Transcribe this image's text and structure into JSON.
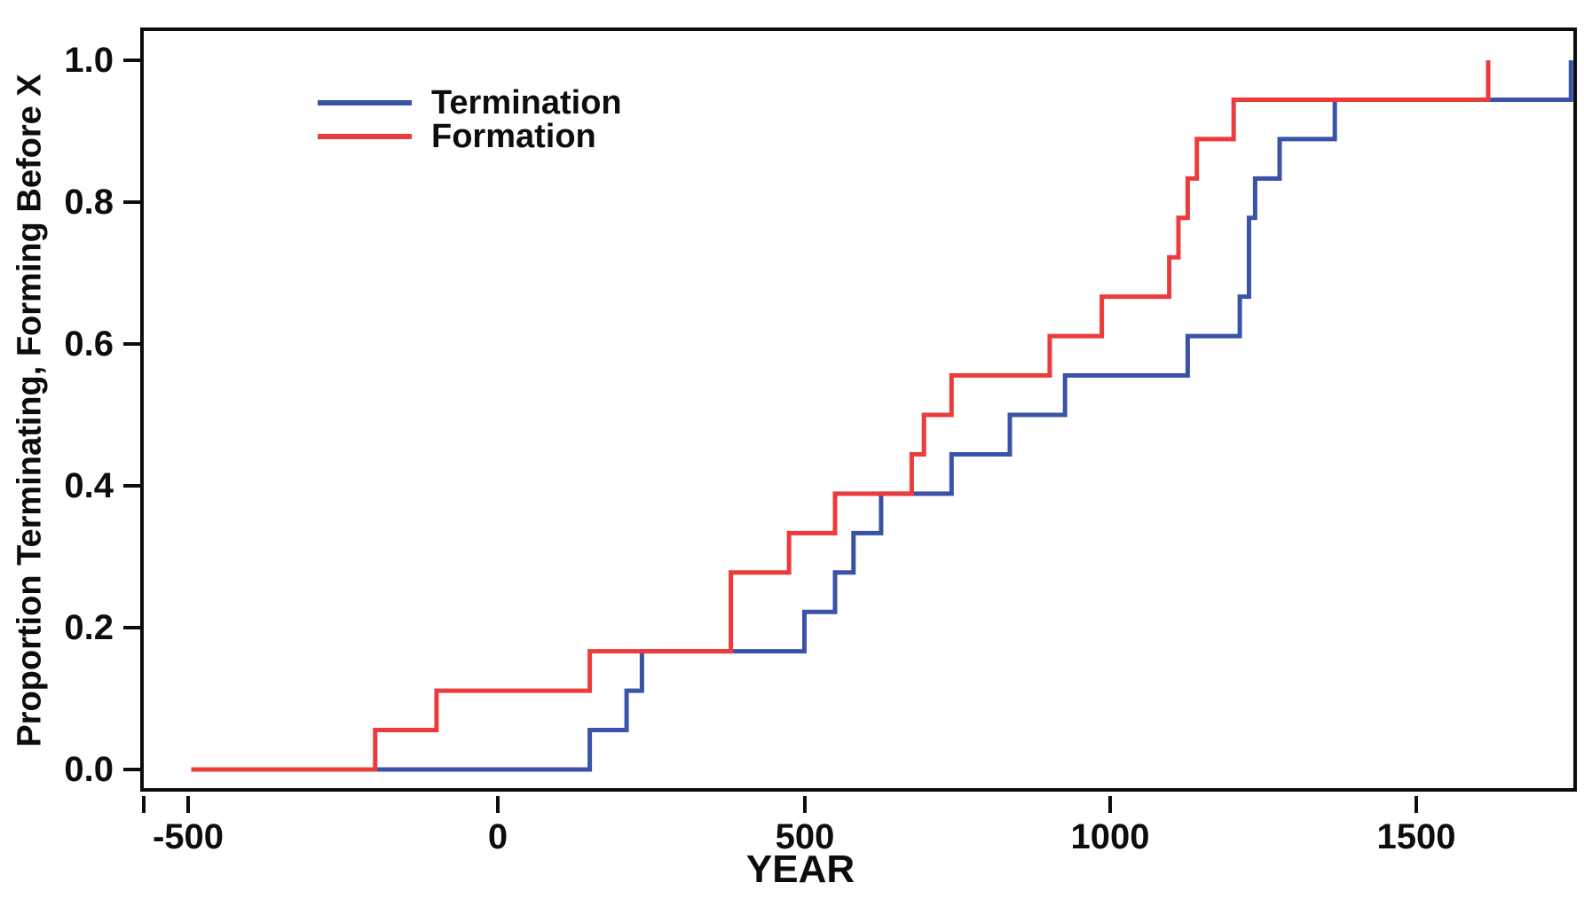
{
  "figure": {
    "x_axis_title": "YEAR",
    "y_axis_title": "Proportion Terminating, Forming Before X",
    "x_tick_labels": [
      "-500",
      "0",
      "500",
      "1000",
      "1500"
    ],
    "y_tick_labels": [
      "0.0",
      "0.2",
      "0.4",
      "0.6",
      "0.8",
      "1.0"
    ],
    "legend": {
      "items": [
        {
          "label": "Termination",
          "color": "#3A53A8"
        },
        {
          "label": "Formation",
          "color": "#EC3B3D"
        }
      ]
    }
  },
  "chart_data": {
    "type": "line",
    "subtype": "step-ecdf",
    "title": "",
    "xlabel": "YEAR",
    "ylabel": "Proportion Terminating, Forming Before X",
    "xlim": [
      -575,
      1765
    ],
    "ylim": [
      -0.035,
      1.045
    ],
    "x_ticks": [
      -500,
      0,
      500,
      1000,
      1500
    ],
    "y_ticks": [
      0.0,
      0.2,
      0.4,
      0.6,
      0.8,
      1.0
    ],
    "grid": false,
    "legend_position": "upper-left-inside",
    "series": [
      {
        "name": "Termination",
        "color": "#3A53A8",
        "start": [
          -500,
          0
        ],
        "steps": [
          [
            150,
            0.0556
          ],
          [
            210,
            0.1111
          ],
          [
            235,
            0.1667
          ],
          [
            500,
            0.2222
          ],
          [
            550,
            0.2778
          ],
          [
            580,
            0.3333
          ],
          [
            625,
            0.3889
          ],
          [
            740,
            0.4444
          ],
          [
            835,
            0.5
          ],
          [
            925,
            0.5556
          ],
          [
            1125,
            0.6111
          ],
          [
            1210,
            0.6667
          ],
          [
            1225,
            0.7778
          ],
          [
            1235,
            0.8333
          ],
          [
            1275,
            0.8889
          ],
          [
            1365,
            0.9444
          ],
          [
            1750,
            1.0
          ]
        ]
      },
      {
        "name": "Formation",
        "color": "#EC3B3D",
        "start": [
          -500,
          0
        ],
        "steps": [
          [
            -200,
            0.0556
          ],
          [
            -100,
            0.1111
          ],
          [
            150,
            0.1667
          ],
          [
            380,
            0.2778
          ],
          [
            475,
            0.3333
          ],
          [
            550,
            0.3889
          ],
          [
            675,
            0.4444
          ],
          [
            695,
            0.5
          ],
          [
            740,
            0.5556
          ],
          [
            900,
            0.6111
          ],
          [
            985,
            0.6667
          ],
          [
            1095,
            0.7222
          ],
          [
            1110,
            0.7778
          ],
          [
            1125,
            0.8333
          ],
          [
            1140,
            0.8889
          ],
          [
            1200,
            0.9444
          ],
          [
            1615,
            1.0
          ]
        ]
      }
    ]
  }
}
